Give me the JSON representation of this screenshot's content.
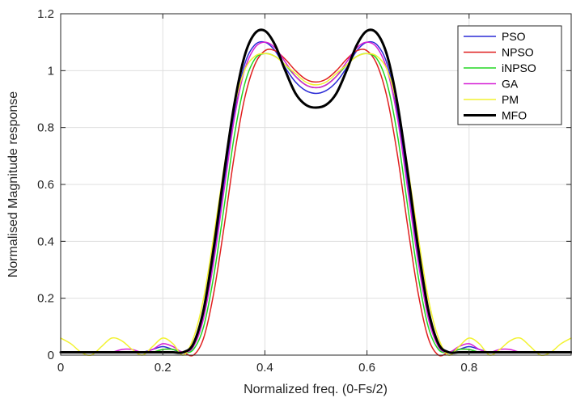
{
  "chart_data": {
    "type": "line",
    "title": "",
    "xlabel": "Normalized freq. (0-Fs/2)",
    "ylabel": "Normalised Magnitude response",
    "xlim": [
      0,
      1
    ],
    "ylim": [
      0,
      1.2
    ],
    "x_ticks": [
      0,
      0.2,
      0.4,
      0.6,
      0.8
    ],
    "x_tick_labels": [
      "0",
      "0.2",
      "0.4",
      "0.6",
      "0.8"
    ],
    "y_ticks": [
      0,
      0.2,
      0.4,
      0.6,
      0.8,
      1,
      1.2
    ],
    "y_tick_labels": [
      "0",
      "0.2",
      "0.4",
      "0.6",
      "0.8",
      "1",
      "1.2"
    ],
    "grid": true,
    "legend_position": "top-right",
    "x": [
      0,
      0.02,
      0.04,
      0.06,
      0.08,
      0.1,
      0.12,
      0.14,
      0.16,
      0.18,
      0.2,
      0.22,
      0.24,
      0.26,
      0.28,
      0.3,
      0.32,
      0.34,
      0.36,
      0.38,
      0.4,
      0.42,
      0.44,
      0.46,
      0.48,
      0.5,
      0.52,
      0.54,
      0.56,
      0.58,
      0.6,
      0.62,
      0.64,
      0.66,
      0.68,
      0.7,
      0.72,
      0.74,
      0.76,
      0.78,
      0.8,
      0.82,
      0.84,
      0.86,
      0.88,
      0.9,
      0.92,
      0.94,
      0.96,
      0.98,
      1.0
    ],
    "series": [
      {
        "name": "PSO",
        "color": "#2b2bd6",
        "width": 1.5,
        "values": [
          0.01,
          0.01,
          0.01,
          0.01,
          0.01,
          0.01,
          0.01,
          0.01,
          0.01,
          0.02,
          0.03,
          0.02,
          0.01,
          0.03,
          0.14,
          0.35,
          0.6,
          0.85,
          1.02,
          1.09,
          1.1,
          1.07,
          1.01,
          0.96,
          0.93,
          0.92,
          0.93,
          0.96,
          1.01,
          1.07,
          1.1,
          1.09,
          1.02,
          0.85,
          0.6,
          0.35,
          0.14,
          0.03,
          0.01,
          0.02,
          0.03,
          0.02,
          0.01,
          0.01,
          0.01,
          0.01,
          0.01,
          0.01,
          0.01,
          0.01,
          0.01
        ]
      },
      {
        "name": "NPSO",
        "color": "#e02020",
        "width": 1.5,
        "values": [
          0.01,
          0.01,
          0.01,
          0.01,
          0.01,
          0.01,
          0.01,
          0.01,
          0.01,
          0.01,
          0.02,
          0.02,
          0.01,
          0.0,
          0.06,
          0.22,
          0.45,
          0.7,
          0.9,
          1.02,
          1.07,
          1.07,
          1.04,
          1.0,
          0.97,
          0.96,
          0.97,
          1.0,
          1.04,
          1.07,
          1.07,
          1.02,
          0.9,
          0.7,
          0.45,
          0.22,
          0.06,
          0.0,
          0.01,
          0.02,
          0.02,
          0.01,
          0.01,
          0.01,
          0.01,
          0.01,
          0.01,
          0.01,
          0.01,
          0.01,
          0.01
        ]
      },
      {
        "name": "iNPSO",
        "color": "#22d622",
        "width": 1.5,
        "values": [
          0.01,
          0.01,
          0.01,
          0.01,
          0.01,
          0.01,
          0.01,
          0.01,
          0.01,
          0.01,
          0.02,
          0.02,
          0.01,
          0.02,
          0.1,
          0.28,
          0.52,
          0.77,
          0.95,
          1.04,
          1.06,
          1.05,
          1.02,
          0.98,
          0.95,
          0.94,
          0.95,
          0.98,
          1.02,
          1.05,
          1.06,
          1.04,
          0.95,
          0.77,
          0.52,
          0.28,
          0.1,
          0.02,
          0.01,
          0.02,
          0.02,
          0.01,
          0.01,
          0.01,
          0.01,
          0.01,
          0.01,
          0.01,
          0.01,
          0.01,
          0.01
        ]
      },
      {
        "name": "GA",
        "color": "#d620d6",
        "width": 1.5,
        "values": [
          0.01,
          0.01,
          0.01,
          0.01,
          0.01,
          0.01,
          0.02,
          0.02,
          0.01,
          0.02,
          0.04,
          0.03,
          0.01,
          0.03,
          0.13,
          0.33,
          0.58,
          0.83,
          1.0,
          1.08,
          1.1,
          1.08,
          1.03,
          0.98,
          0.95,
          0.94,
          0.95,
          0.98,
          1.03,
          1.08,
          1.1,
          1.08,
          1.0,
          0.83,
          0.58,
          0.33,
          0.13,
          0.03,
          0.01,
          0.03,
          0.04,
          0.02,
          0.01,
          0.02,
          0.02,
          0.01,
          0.01,
          0.01,
          0.01,
          0.01,
          0.01
        ]
      },
      {
        "name": "PM",
        "color": "#f2f230",
        "width": 1.5,
        "values": [
          0.06,
          0.04,
          0.01,
          0.0,
          0.03,
          0.06,
          0.05,
          0.02,
          0.0,
          0.03,
          0.06,
          0.04,
          0.0,
          0.06,
          0.2,
          0.42,
          0.66,
          0.87,
          1.0,
          1.05,
          1.06,
          1.05,
          1.02,
          0.99,
          0.96,
          0.95,
          0.96,
          0.99,
          1.02,
          1.05,
          1.06,
          1.05,
          1.0,
          0.87,
          0.66,
          0.42,
          0.2,
          0.06,
          0.0,
          0.03,
          0.06,
          0.04,
          0.0,
          0.02,
          0.05,
          0.06,
          0.03,
          0.0,
          0.01,
          0.04,
          0.06
        ]
      },
      {
        "name": "MFO",
        "color": "#000000",
        "width": 3,
        "values": [
          0.01,
          0.01,
          0.01,
          0.01,
          0.01,
          0.01,
          0.01,
          0.01,
          0.01,
          0.01,
          0.01,
          0.01,
          0.01,
          0.04,
          0.16,
          0.38,
          0.64,
          0.88,
          1.05,
          1.13,
          1.14,
          1.09,
          1.0,
          0.92,
          0.88,
          0.87,
          0.88,
          0.92,
          1.0,
          1.09,
          1.14,
          1.13,
          1.05,
          0.88,
          0.64,
          0.38,
          0.16,
          0.04,
          0.01,
          0.01,
          0.01,
          0.01,
          0.01,
          0.01,
          0.01,
          0.01,
          0.01,
          0.01,
          0.01,
          0.01,
          0.01
        ]
      }
    ]
  }
}
